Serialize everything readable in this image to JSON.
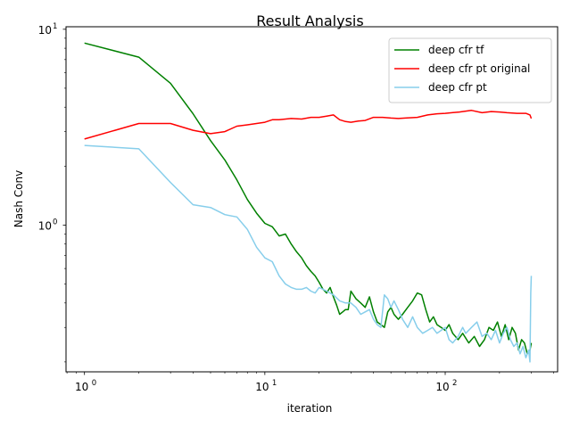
{
  "chart_data": {
    "type": "line",
    "title": "Result Analysis",
    "xlabel": "iteration",
    "ylabel": "Nash Conv",
    "x_scale": "log",
    "y_scale": "log",
    "xlim": [
      0.79,
      420
    ],
    "ylim": [
      0.178,
      10.3
    ],
    "grid": false,
    "legend_position": "top-right",
    "x_ticks": [
      {
        "base": "10",
        "exp": "0",
        "value": 1
      },
      {
        "base": "10",
        "exp": "1",
        "value": 10
      },
      {
        "base": "10",
        "exp": "2",
        "value": 100
      }
    ],
    "y_ticks": [
      {
        "base": "10",
        "exp": "0",
        "value": 1
      },
      {
        "base": "10",
        "exp": "1",
        "value": 10
      }
    ],
    "series": [
      {
        "name": "deep cfr tf",
        "color": "#008000",
        "points": [
          [
            1,
            8.5
          ],
          [
            2,
            7.2
          ],
          [
            3,
            5.3
          ],
          [
            4,
            3.7
          ],
          [
            5,
            2.7
          ],
          [
            6,
            2.15
          ],
          [
            7,
            1.7
          ],
          [
            8,
            1.35
          ],
          [
            9,
            1.15
          ],
          [
            10,
            1.02
          ],
          [
            11,
            0.98
          ],
          [
            12,
            0.88
          ],
          [
            13,
            0.9
          ],
          [
            14,
            0.8
          ],
          [
            15,
            0.73
          ],
          [
            16,
            0.68
          ],
          [
            17,
            0.62
          ],
          [
            18,
            0.58
          ],
          [
            19,
            0.55
          ],
          [
            20,
            0.51
          ],
          [
            21,
            0.47
          ],
          [
            22,
            0.45
          ],
          [
            23,
            0.48
          ],
          [
            24,
            0.43
          ],
          [
            25,
            0.39
          ],
          [
            26,
            0.35
          ],
          [
            27,
            0.36
          ],
          [
            28,
            0.37
          ],
          [
            29,
            0.37
          ],
          [
            30,
            0.46
          ],
          [
            32,
            0.42
          ],
          [
            34,
            0.4
          ],
          [
            36,
            0.38
          ],
          [
            38,
            0.43
          ],
          [
            40,
            0.36
          ],
          [
            42,
            0.32
          ],
          [
            44,
            0.31
          ],
          [
            46,
            0.3
          ],
          [
            48,
            0.36
          ],
          [
            50,
            0.38
          ],
          [
            52,
            0.35
          ],
          [
            55,
            0.33
          ],
          [
            58,
            0.35
          ],
          [
            62,
            0.38
          ],
          [
            66,
            0.41
          ],
          [
            70,
            0.45
          ],
          [
            74,
            0.44
          ],
          [
            78,
            0.37
          ],
          [
            82,
            0.32
          ],
          [
            86,
            0.34
          ],
          [
            90,
            0.31
          ],
          [
            95,
            0.3
          ],
          [
            100,
            0.29
          ],
          [
            105,
            0.31
          ],
          [
            110,
            0.28
          ],
          [
            118,
            0.26
          ],
          [
            125,
            0.28
          ],
          [
            135,
            0.25
          ],
          [
            145,
            0.27
          ],
          [
            155,
            0.24
          ],
          [
            165,
            0.26
          ],
          [
            175,
            0.3
          ],
          [
            185,
            0.29
          ],
          [
            195,
            0.32
          ],
          [
            205,
            0.27
          ],
          [
            215,
            0.31
          ],
          [
            225,
            0.26
          ],
          [
            235,
            0.3
          ],
          [
            245,
            0.28
          ],
          [
            255,
            0.23
          ],
          [
            265,
            0.26
          ],
          [
            275,
            0.25
          ],
          [
            285,
            0.22
          ],
          [
            295,
            0.23
          ],
          [
            300,
            0.25
          ]
        ]
      },
      {
        "name": "deep cfr pt original",
        "color": "#ff0000",
        "points": [
          [
            1,
            2.75
          ],
          [
            2,
            3.3
          ],
          [
            3,
            3.3
          ],
          [
            4,
            3.05
          ],
          [
            5,
            2.93
          ],
          [
            6,
            3.0
          ],
          [
            7,
            3.2
          ],
          [
            8,
            3.25
          ],
          [
            10,
            3.35
          ],
          [
            11,
            3.45
          ],
          [
            12,
            3.45
          ],
          [
            14,
            3.5
          ],
          [
            16,
            3.48
          ],
          [
            18,
            3.55
          ],
          [
            20,
            3.55
          ],
          [
            22,
            3.6
          ],
          [
            24,
            3.65
          ],
          [
            26,
            3.45
          ],
          [
            28,
            3.38
          ],
          [
            30,
            3.35
          ],
          [
            33,
            3.4
          ],
          [
            36,
            3.42
          ],
          [
            40,
            3.55
          ],
          [
            45,
            3.55
          ],
          [
            50,
            3.52
          ],
          [
            55,
            3.5
          ],
          [
            60,
            3.52
          ],
          [
            70,
            3.55
          ],
          [
            80,
            3.65
          ],
          [
            90,
            3.7
          ],
          [
            100,
            3.72
          ],
          [
            120,
            3.78
          ],
          [
            140,
            3.85
          ],
          [
            160,
            3.75
          ],
          [
            180,
            3.8
          ],
          [
            200,
            3.78
          ],
          [
            220,
            3.75
          ],
          [
            250,
            3.72
          ],
          [
            280,
            3.72
          ],
          [
            295,
            3.65
          ],
          [
            300,
            3.5
          ]
        ]
      },
      {
        "name": "deep cfr pt",
        "color": "#87ceeb",
        "points": [
          [
            1,
            2.55
          ],
          [
            2,
            2.45
          ],
          [
            3,
            1.65
          ],
          [
            4,
            1.27
          ],
          [
            5,
            1.23
          ],
          [
            6,
            1.13
          ],
          [
            7,
            1.1
          ],
          [
            8,
            0.95
          ],
          [
            9,
            0.77
          ],
          [
            10,
            0.68
          ],
          [
            11,
            0.65
          ],
          [
            12,
            0.55
          ],
          [
            13,
            0.5
          ],
          [
            14,
            0.48
          ],
          [
            15,
            0.47
          ],
          [
            16,
            0.47
          ],
          [
            17,
            0.48
          ],
          [
            18,
            0.46
          ],
          [
            19,
            0.45
          ],
          [
            20,
            0.48
          ],
          [
            21,
            0.47
          ],
          [
            22,
            0.46
          ],
          [
            24,
            0.44
          ],
          [
            26,
            0.41
          ],
          [
            28,
            0.4
          ],
          [
            30,
            0.4
          ],
          [
            32,
            0.38
          ],
          [
            34,
            0.35
          ],
          [
            36,
            0.36
          ],
          [
            38,
            0.37
          ],
          [
            40,
            0.33
          ],
          [
            42,
            0.31
          ],
          [
            44,
            0.3
          ],
          [
            46,
            0.44
          ],
          [
            48,
            0.42
          ],
          [
            50,
            0.38
          ],
          [
            52,
            0.41
          ],
          [
            55,
            0.37
          ],
          [
            58,
            0.33
          ],
          [
            62,
            0.3
          ],
          [
            66,
            0.34
          ],
          [
            70,
            0.3
          ],
          [
            75,
            0.28
          ],
          [
            80,
            0.29
          ],
          [
            85,
            0.3
          ],
          [
            90,
            0.28
          ],
          [
            95,
            0.29
          ],
          [
            100,
            0.3
          ],
          [
            105,
            0.26
          ],
          [
            110,
            0.25
          ],
          [
            118,
            0.27
          ],
          [
            125,
            0.3
          ],
          [
            130,
            0.28
          ],
          [
            140,
            0.3
          ],
          [
            150,
            0.32
          ],
          [
            160,
            0.27
          ],
          [
            170,
            0.28
          ],
          [
            180,
            0.26
          ],
          [
            190,
            0.29
          ],
          [
            200,
            0.25
          ],
          [
            210,
            0.28
          ],
          [
            220,
            0.3
          ],
          [
            230,
            0.26
          ],
          [
            240,
            0.24
          ],
          [
            250,
            0.25
          ],
          [
            260,
            0.22
          ],
          [
            270,
            0.24
          ],
          [
            280,
            0.21
          ],
          [
            290,
            0.23
          ],
          [
            295,
            0.2
          ],
          [
            298,
            0.45
          ],
          [
            300,
            0.55
          ]
        ]
      }
    ]
  }
}
